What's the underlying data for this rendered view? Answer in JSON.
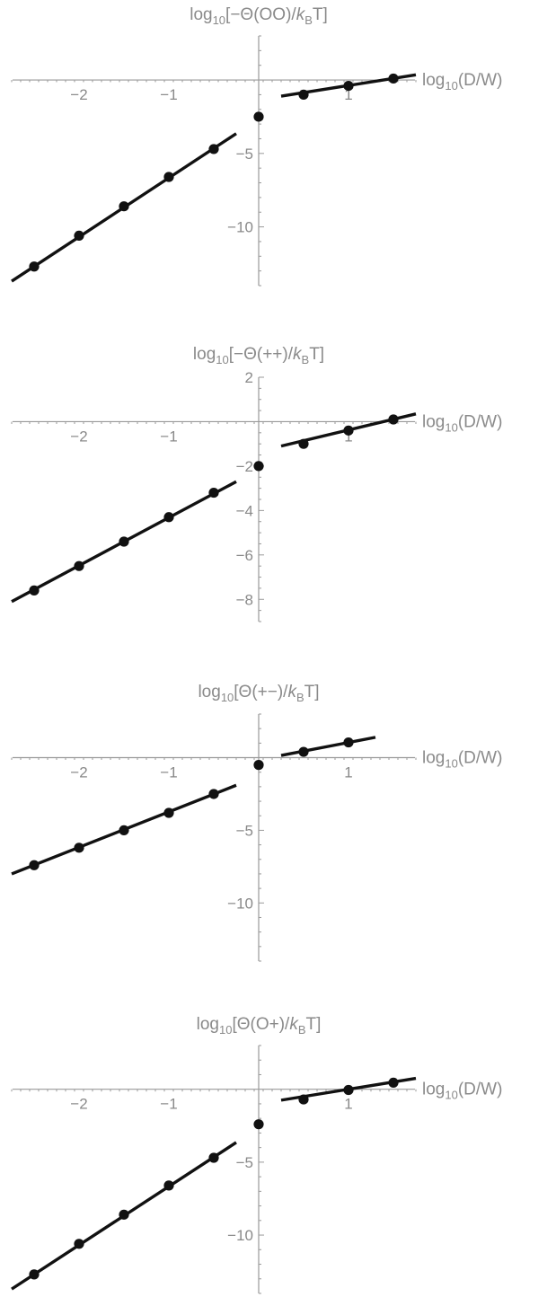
{
  "chart_data": [
    {
      "type": "scatter",
      "title_parts": [
        "log",
        "10",
        "[−Θ(OO)/",
        "k",
        "B",
        "T]"
      ],
      "xlabel_parts": [
        "log",
        "10",
        "(D/W)"
      ],
      "xticks": [
        -2,
        -1,
        1
      ],
      "yticks": [
        -5,
        -10
      ],
      "xlim": [
        -2.75,
        1.75
      ],
      "ylim": [
        -14.0,
        3.0
      ],
      "points": [
        {
          "x": -2.5,
          "y": -12.7
        },
        {
          "x": -2.0,
          "y": -10.6
        },
        {
          "x": -1.5,
          "y": -8.6
        },
        {
          "x": -1.0,
          "y": -6.6
        },
        {
          "x": -0.5,
          "y": -4.7
        },
        {
          "x": 0.0,
          "y": -2.5
        },
        {
          "x": 0.5,
          "y": -1.0
        },
        {
          "x": 1.0,
          "y": -0.4
        },
        {
          "x": 1.5,
          "y": 0.1
        }
      ],
      "fits": [
        {
          "x": [
            -2.75,
            -0.25
          ],
          "y": [
            -13.7,
            -3.65
          ]
        },
        {
          "x": [
            0.25,
            1.75
          ],
          "y": [
            -1.1,
            0.35
          ]
        }
      ]
    },
    {
      "type": "scatter",
      "title_parts": [
        "log",
        "10",
        "[−Θ(++)/",
        "k",
        "B",
        "T]"
      ],
      "xlabel_parts": [
        "log",
        "10",
        "(D/W)"
      ],
      "xticks": [
        -2,
        -1,
        1
      ],
      "yticks": [
        2,
        -2,
        -4,
        -6,
        -8
      ],
      "xlim": [
        -2.75,
        1.75
      ],
      "ylim": [
        -9.0,
        2.0
      ],
      "points": [
        {
          "x": -2.5,
          "y": -7.6
        },
        {
          "x": -2.0,
          "y": -6.5
        },
        {
          "x": -1.5,
          "y": -5.4
        },
        {
          "x": -1.0,
          "y": -4.3
        },
        {
          "x": -0.5,
          "y": -3.2
        },
        {
          "x": 0.0,
          "y": -2.0
        },
        {
          "x": 0.5,
          "y": -1.0
        },
        {
          "x": 1.0,
          "y": -0.4
        },
        {
          "x": 1.5,
          "y": 0.1
        }
      ],
      "fits": [
        {
          "x": [
            -2.75,
            -0.25
          ],
          "y": [
            -8.1,
            -2.7
          ]
        },
        {
          "x": [
            0.25,
            1.75
          ],
          "y": [
            -1.1,
            0.35
          ]
        }
      ]
    },
    {
      "type": "scatter",
      "title_parts": [
        "log",
        "10",
        "[Θ(+−)/",
        "k",
        "B",
        "T]"
      ],
      "xlabel_parts": [
        "log",
        "10",
        "(D/W)"
      ],
      "xticks": [
        -2,
        -1,
        1
      ],
      "yticks": [
        -5,
        -10
      ],
      "xlim": [
        -2.75,
        1.75
      ],
      "ylim": [
        -14.0,
        3.0
      ],
      "points": [
        {
          "x": -2.5,
          "y": -7.4
        },
        {
          "x": -2.0,
          "y": -6.2
        },
        {
          "x": -1.5,
          "y": -5.0
        },
        {
          "x": -1.0,
          "y": -3.8
        },
        {
          "x": -0.5,
          "y": -2.5
        },
        {
          "x": 0.0,
          "y": -0.5
        },
        {
          "x": 0.5,
          "y": 0.4
        },
        {
          "x": 1.0,
          "y": 1.05
        }
      ],
      "fits": [
        {
          "x": [
            -2.75,
            -0.25
          ],
          "y": [
            -8.0,
            -1.9
          ]
        },
        {
          "x": [
            0.25,
            1.3
          ],
          "y": [
            0.15,
            1.4
          ]
        }
      ]
    },
    {
      "type": "scatter",
      "title_parts": [
        "log",
        "10",
        "[Θ(O+)/",
        "k",
        "B",
        "T]"
      ],
      "xlabel_parts": [
        "log",
        "10",
        "(D/W)"
      ],
      "xticks": [
        -2,
        -1,
        1
      ],
      "yticks": [
        -5,
        -10
      ],
      "xlim": [
        -2.75,
        1.75
      ],
      "ylim": [
        -14.0,
        3.0
      ],
      "points": [
        {
          "x": -2.5,
          "y": -12.7
        },
        {
          "x": -2.0,
          "y": -10.6
        },
        {
          "x": -1.5,
          "y": -8.6
        },
        {
          "x": -1.0,
          "y": -6.6
        },
        {
          "x": -0.5,
          "y": -4.7
        },
        {
          "x": 0.0,
          "y": -2.4
        },
        {
          "x": 0.5,
          "y": -0.7
        },
        {
          "x": 1.0,
          "y": -0.05
        },
        {
          "x": 1.5,
          "y": 0.45
        }
      ],
      "fits": [
        {
          "x": [
            -2.75,
            -0.25
          ],
          "y": [
            -13.7,
            -3.65
          ]
        },
        {
          "x": [
            0.25,
            1.75
          ],
          "y": [
            -0.75,
            0.75
          ]
        }
      ]
    }
  ]
}
